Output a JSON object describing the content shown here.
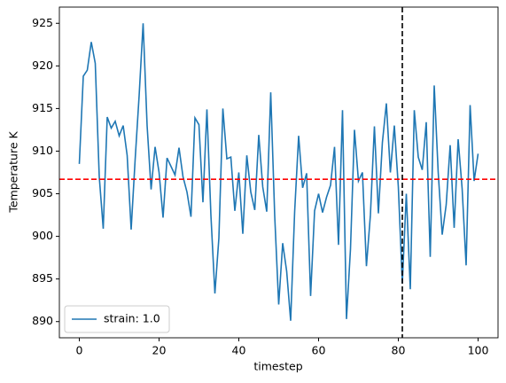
{
  "chart_data": {
    "type": "line",
    "xlabel": "timestep",
    "ylabel": "Temperature K",
    "x": [
      0,
      1,
      2,
      3,
      4,
      5,
      6,
      7,
      8,
      9,
      10,
      11,
      12,
      13,
      14,
      15,
      16,
      17,
      18,
      19,
      20,
      21,
      22,
      23,
      24,
      25,
      26,
      27,
      28,
      29,
      30,
      31,
      32,
      33,
      34,
      35,
      36,
      37,
      38,
      39,
      40,
      41,
      42,
      43,
      44,
      45,
      46,
      47,
      48,
      49,
      50,
      51,
      52,
      53,
      54,
      55,
      56,
      57,
      58,
      59,
      60,
      61,
      62,
      63,
      64,
      65,
      66,
      67,
      68,
      69,
      70,
      71,
      72,
      73,
      74,
      75,
      76,
      77,
      78,
      79,
      80,
      81,
      82,
      83,
      84,
      85,
      86,
      87,
      88,
      89,
      90,
      91,
      92,
      93,
      94,
      95,
      96,
      97,
      98,
      99,
      100
    ],
    "series": [
      {
        "name": "strain: 1.0",
        "color": "#1f77b4",
        "values": [
          908.5,
          918.8,
          919.5,
          922.8,
          920.3,
          907,
          900.9,
          914,
          912.7,
          913.5,
          911.8,
          913,
          909.5,
          900.8,
          909,
          916.5,
          925,
          913,
          905.5,
          910.5,
          907.5,
          902.2,
          909.2,
          908.2,
          907.2,
          910.4,
          907,
          905.2,
          902.3,
          913.9,
          913.1,
          904,
          914.9,
          902.5,
          893.3,
          899.8,
          915,
          909.1,
          909.3,
          903,
          907.5,
          900.3,
          909.5,
          905.2,
          903.1,
          911.9,
          905.8,
          902.9,
          916.9,
          902.4,
          892,
          899.2,
          895.9,
          890.1,
          902.9,
          911.8,
          905.7,
          907.4,
          893,
          903,
          905,
          902.8,
          904.6,
          906,
          910.5,
          899,
          914.8,
          890.3,
          898.5,
          912.5,
          906.5,
          907.5,
          896.5,
          902.5,
          912.9,
          902.7,
          911,
          915.6,
          907.5,
          913,
          905.8,
          894.5,
          905,
          893.8,
          914.8,
          909.3,
          907.8,
          913.4,
          897.6,
          917.7,
          907.5,
          900.2,
          903.7,
          910.7,
          901,
          911.4,
          905.6,
          896.6,
          915.4,
          906.5,
          909.7
        ]
      }
    ],
    "hline": 906.7,
    "hline_color": "#ff0000",
    "vline": 81,
    "vline_color": "#000000",
    "xlim": [
      -5,
      105
    ],
    "ylim": [
      888.1,
      926.9
    ],
    "xticks": [
      0,
      20,
      40,
      60,
      80,
      100
    ],
    "yticks": [
      890,
      895,
      900,
      905,
      910,
      915,
      920,
      925
    ],
    "legend": "lower left"
  }
}
